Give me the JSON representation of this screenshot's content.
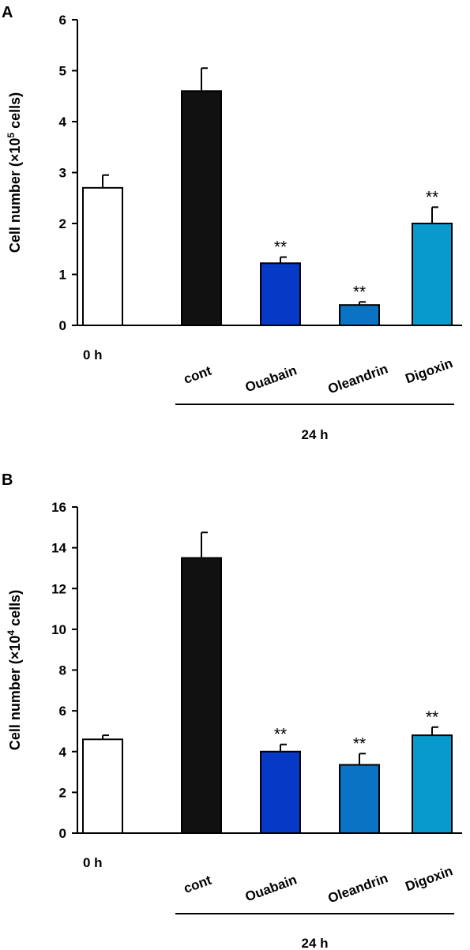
{
  "chart_data": [
    {
      "type": "bar",
      "panel_label": "A",
      "ylabel": {
        "pre": "Cell number (×10",
        "sup": "5",
        "post": " cells)"
      },
      "ylim": [
        0,
        6
      ],
      "yticks": [
        "0",
        "1",
        "2",
        "3",
        "4",
        "5",
        "6"
      ],
      "categories": [
        "0 h",
        "cont",
        "Ouabain",
        "Oleandrin",
        "Digoxin"
      ],
      "values": [
        2.7,
        4.6,
        1.22,
        0.4,
        2.0
      ],
      "errors": [
        0.25,
        0.45,
        0.12,
        0.06,
        0.32
      ],
      "significance": [
        "",
        "",
        "**",
        "**",
        "**"
      ],
      "colors": [
        "#ffffff",
        "#111111",
        "#0639c6",
        "#0a73c4",
        "#0899cd"
      ],
      "group_label": "24 h",
      "legend": "none",
      "grid": false
    },
    {
      "type": "bar",
      "panel_label": "B",
      "ylabel": {
        "pre": "Cell number (×10",
        "sup": "4",
        "post": " cells)"
      },
      "ylim": [
        0,
        16
      ],
      "yticks": [
        "0",
        "2",
        "4",
        "6",
        "8",
        "10",
        "12",
        "14",
        "16"
      ],
      "categories": [
        "0 h",
        "cont",
        "Ouabain",
        "Oleandrin",
        "Digoxin"
      ],
      "values": [
        4.6,
        13.5,
        4.0,
        3.35,
        4.8
      ],
      "errors": [
        0.2,
        1.25,
        0.35,
        0.55,
        0.4
      ],
      "significance": [
        "",
        "",
        "**",
        "**",
        "**"
      ],
      "colors": [
        "#ffffff",
        "#111111",
        "#0639c6",
        "#0a73c4",
        "#0899cd"
      ],
      "group_label": "24 h",
      "legend": "none",
      "grid": false
    }
  ]
}
